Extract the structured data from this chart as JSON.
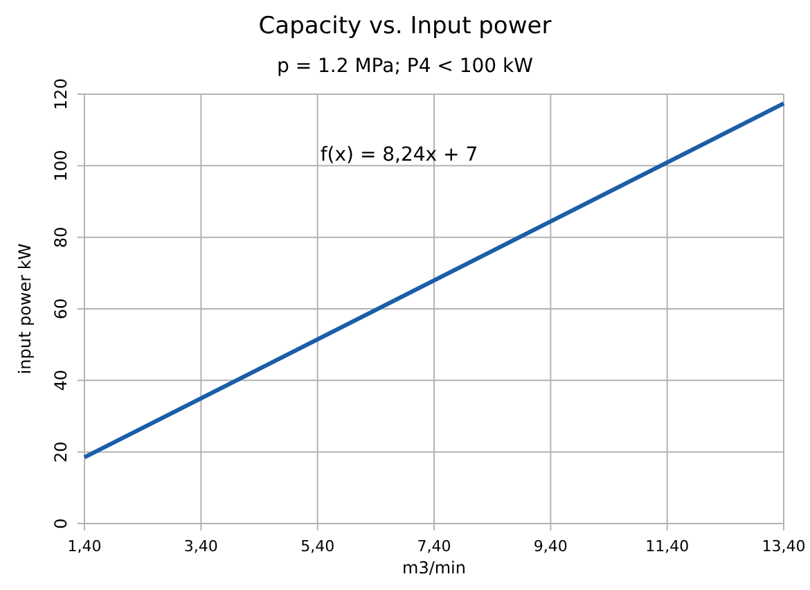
{
  "chart_data": {
    "type": "line",
    "title": "Capacity vs. Input power",
    "subtitle": "p = 1.2 MPa; P4 < 100 kW",
    "xlabel": "m3/min",
    "ylabel": "input power kW",
    "annotations": [
      "f(x) = 8,24x + 7"
    ],
    "x": [
      1.4,
      13.4
    ],
    "series": [
      {
        "color": "#1a5ea8",
        "values": [
          18.5,
          117.4
        ]
      }
    ],
    "xlim": [
      1.4,
      13.4
    ],
    "xticks": [
      {
        "value": 1.4,
        "label": "1,40"
      },
      {
        "value": 3.4,
        "label": "3,40"
      },
      {
        "value": 5.4,
        "label": "5,40"
      },
      {
        "value": 7.4,
        "label": "7,40"
      },
      {
        "value": 9.4,
        "label": "9,40"
      },
      {
        "value": 11.4,
        "label": "11,40"
      },
      {
        "value": 13.4,
        "label": "13,40"
      }
    ],
    "ylim": [
      0,
      120
    ],
    "yticks": [
      0,
      20,
      40,
      60,
      80,
      100,
      120
    ],
    "grid": true,
    "marker": "none",
    "line_style": "solid"
  }
}
